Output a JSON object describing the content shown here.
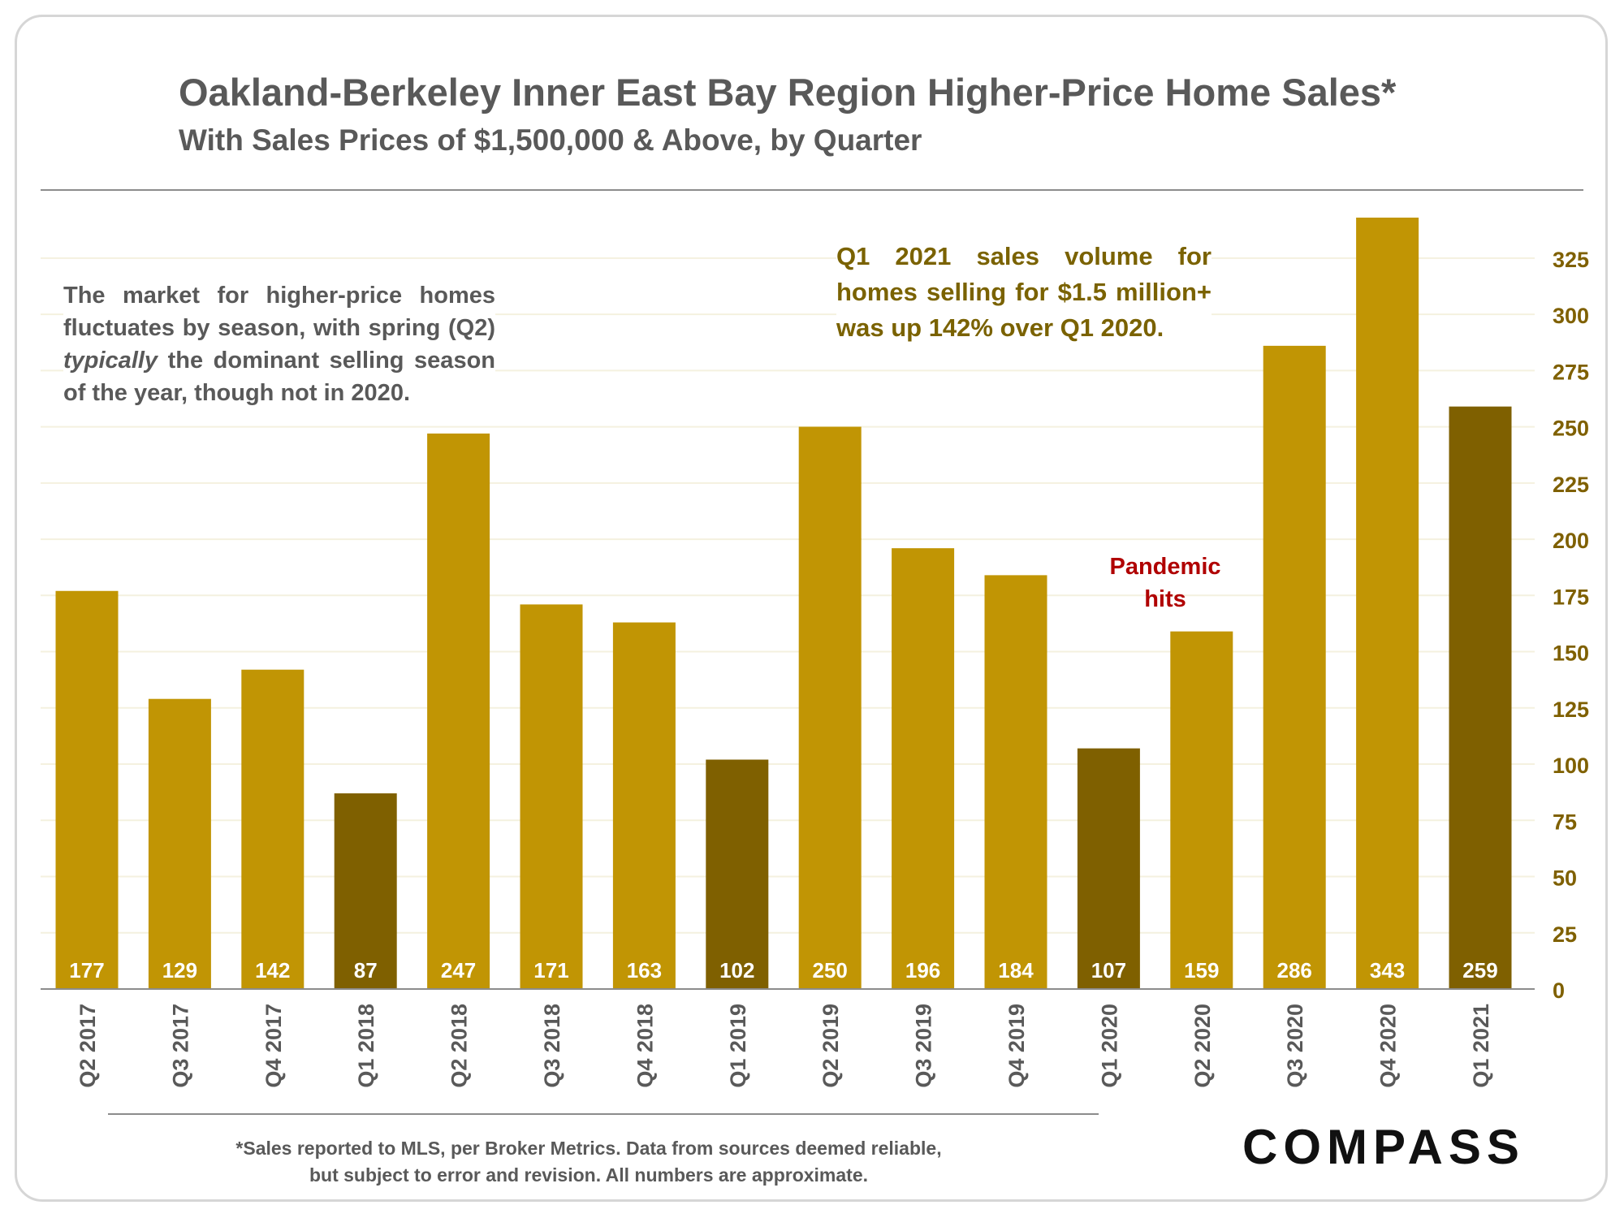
{
  "title": "Oakland-Berkeley Inner East Bay Region Higher-Price Home Sales*",
  "subtitle": "With Sales Prices of $1,500,000 & Above, by Quarter",
  "annotations": {
    "left_note_before": "The market for higher-price homes fluctuates by season, with spring (Q2)",
    "left_note_italic": "typically",
    "left_note_after": "the dominant selling season of the year, though not in 2020.",
    "right_note": "Q1 2021 sales volume for homes selling for $1.5 million+ was up 142% over Q1 2020.",
    "pandemic": "Pandemic hits"
  },
  "footnote_line1": "*Sales reported to MLS, per Broker Metrics. Data from sources deemed reliable,",
  "footnote_line2": "but subject to error and revision. All numbers are approximate.",
  "logo": "COMPASS",
  "colors": {
    "bar": "#c19504",
    "bar_q1": "#7f6000",
    "axis_text": "#7f6000",
    "label": "#ffffff",
    "pandemic": "#b00000",
    "note_right": "#7a6200"
  },
  "chart_data": {
    "type": "bar",
    "categories": [
      "Q2 2017",
      "Q3 2017",
      "Q4 2017",
      "Q1 2018",
      "Q2 2018",
      "Q3 2018",
      "Q4 2018",
      "Q1 2019",
      "Q2 2019",
      "Q3 2019",
      "Q4 2019",
      "Q1 2020",
      "Q2 2020",
      "Q3 2020",
      "Q4 2020",
      "Q1 2021"
    ],
    "values": [
      177,
      129,
      142,
      87,
      247,
      171,
      163,
      102,
      250,
      196,
      184,
      107,
      159,
      286,
      343,
      259
    ],
    "highlighted": [
      "Q1 2018",
      "Q1 2019",
      "Q1 2020",
      "Q1 2021"
    ],
    "ylim": [
      0,
      343
    ],
    "yticks": [
      0,
      25,
      50,
      75,
      100,
      125,
      150,
      175,
      200,
      225,
      250,
      275,
      300,
      325
    ],
    "y_axis_side": "right",
    "grid": true,
    "xlabel": "",
    "ylabel": ""
  }
}
